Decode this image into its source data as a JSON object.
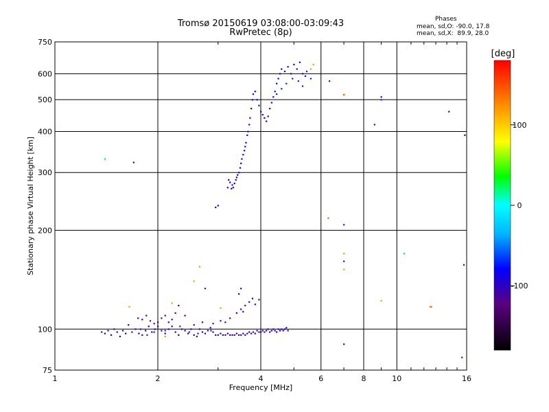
{
  "header": {
    "title": "Tromsø 20150619 03:08:00-03:09:43",
    "subtitle": "RwPretec (8p)",
    "phases_title": "Phases",
    "phases_o": "mean, sd,O: -90.0, 17.8",
    "phases_x": "mean, sd,X:  89.9, 28.0"
  },
  "chart_data": {
    "type": "scatter",
    "title": "Tromsø 20150619 03:08:00-03:09:43",
    "subtitle": "RwPretec (8p)",
    "xlabel": "Frequency [MHz]",
    "ylabel": "Stationary phase Virtual Height [km]",
    "xscale": "log",
    "yscale": "log",
    "xlim": [
      1,
      16
    ],
    "ylim": [
      75,
      750
    ],
    "x_ticks": [
      1,
      2,
      4,
      6,
      8,
      10,
      16
    ],
    "x_tick_labels": [
      "1",
      "2",
      "4",
      "6",
      "8",
      "10",
      "16"
    ],
    "y_ticks": [
      75,
      100,
      200,
      300,
      400,
      500,
      600,
      750
    ],
    "y_tick_labels": [
      "75",
      "100",
      "200",
      "300",
      "400",
      "500",
      "600",
      "750"
    ],
    "grid": true,
    "colorbar": {
      "label": "[deg]",
      "range": [
        -180,
        180
      ],
      "ticks": [
        100,
        0,
        -100
      ],
      "tick_labels": [
        "100",
        "0",
        "-100"
      ]
    },
    "series": [
      {
        "name": "",
        "phase": -100,
        "points": [
          [
            1.37,
            98
          ],
          [
            1.4,
            97
          ],
          [
            1.43,
            99
          ],
          [
            1.46,
            96
          ],
          [
            1.49,
            100
          ],
          [
            1.52,
            98
          ],
          [
            1.55,
            95
          ],
          [
            1.58,
            99
          ],
          [
            1.61,
            97
          ],
          [
            1.64,
            103
          ],
          [
            1.68,
            98
          ],
          [
            1.72,
            100
          ],
          [
            1.76,
            97
          ],
          [
            1.8,
            96
          ],
          [
            1.84,
            99
          ],
          [
            1.88,
            102
          ],
          [
            1.92,
            98
          ],
          [
            1.96,
            100
          ],
          [
            2.0,
            105
          ],
          [
            2.05,
            99
          ],
          [
            2.1,
            97
          ],
          [
            2.15,
            100
          ],
          [
            2.2,
            102
          ],
          [
            2.25,
            98
          ],
          [
            2.3,
            96
          ],
          [
            2.35,
            100
          ],
          [
            2.4,
            99
          ],
          [
            2.45,
            97
          ],
          [
            2.5,
            100
          ],
          [
            2.55,
            96
          ],
          [
            2.6,
            95
          ],
          [
            2.65,
            100
          ],
          [
            2.7,
            98
          ],
          [
            2.75,
            97
          ],
          [
            2.8,
            99
          ],
          [
            2.85,
            101
          ],
          [
            2.9,
            98
          ],
          [
            2.95,
            96
          ],
          [
            3.0,
            96
          ],
          [
            3.05,
            97
          ],
          [
            3.1,
            96
          ],
          [
            3.15,
            96
          ],
          [
            3.2,
            97
          ],
          [
            3.25,
            96
          ],
          [
            3.3,
            96
          ],
          [
            3.35,
            96
          ],
          [
            3.4,
            97
          ],
          [
            3.45,
            96
          ],
          [
            3.5,
            96
          ],
          [
            3.55,
            97
          ],
          [
            3.6,
            96
          ],
          [
            3.65,
            97
          ],
          [
            3.7,
            98
          ],
          [
            3.75,
            97
          ],
          [
            3.8,
            98
          ],
          [
            3.85,
            97
          ],
          [
            3.9,
            99
          ],
          [
            3.95,
            98
          ],
          [
            4.0,
            98
          ],
          [
            4.05,
            99
          ],
          [
            4.1,
            98
          ],
          [
            4.15,
            99
          ],
          [
            4.2,
            100
          ],
          [
            4.25,
            98
          ],
          [
            4.3,
            99
          ],
          [
            4.35,
            100
          ],
          [
            4.4,
            99
          ],
          [
            4.45,
            98
          ],
          [
            4.5,
            100
          ],
          [
            4.55,
            99
          ],
          [
            4.6,
            100
          ],
          [
            4.65,
            99
          ],
          [
            4.7,
            100
          ],
          [
            4.75,
            101
          ],
          [
            4.8,
            99
          ]
        ]
      },
      {
        "name": "",
        "phase": -110,
        "points": [
          [
            1.75,
            108
          ],
          [
            1.8,
            107
          ],
          [
            1.85,
            110
          ],
          [
            1.9,
            106
          ],
          [
            1.95,
            104
          ],
          [
            2.0,
            102
          ],
          [
            2.05,
            108
          ],
          [
            2.1,
            110
          ],
          [
            2.15,
            105
          ],
          [
            2.2,
            107
          ],
          [
            2.25,
            112
          ],
          [
            2.3,
            118
          ],
          [
            2.4,
            110
          ],
          [
            2.55,
            103
          ],
          [
            2.7,
            105
          ],
          [
            2.9,
            104
          ],
          [
            3.05,
            106
          ],
          [
            3.15,
            105
          ],
          [
            3.25,
            108
          ],
          [
            3.4,
            112
          ],
          [
            3.5,
            115
          ],
          [
            3.55,
            113
          ],
          [
            3.6,
            118
          ],
          [
            3.7,
            121
          ],
          [
            3.78,
            124
          ],
          [
            3.85,
            119
          ],
          [
            3.95,
            123
          ],
          [
            3.5,
            133
          ],
          [
            3.45,
            128
          ]
        ]
      },
      {
        "name": "",
        "phase": -90,
        "points": [
          [
            2.95,
            235
          ],
          [
            3.0,
            238
          ],
          [
            3.2,
            270
          ],
          [
            3.22,
            285
          ],
          [
            3.25,
            280
          ],
          [
            3.28,
            268
          ],
          [
            3.3,
            275
          ],
          [
            3.32,
            270
          ],
          [
            3.35,
            278
          ],
          [
            3.38,
            285
          ],
          [
            3.4,
            290
          ],
          [
            3.42,
            295
          ],
          [
            3.45,
            300
          ],
          [
            3.48,
            310
          ],
          [
            3.5,
            320
          ],
          [
            3.52,
            330
          ],
          [
            3.55,
            340
          ],
          [
            3.58,
            350
          ],
          [
            3.6,
            360
          ],
          [
            3.62,
            370
          ],
          [
            3.65,
            390
          ],
          [
            3.67,
            400
          ],
          [
            3.7,
            420
          ],
          [
            3.72,
            440
          ],
          [
            3.75,
            470
          ],
          [
            3.78,
            500
          ],
          [
            3.8,
            520
          ],
          [
            3.85,
            530
          ],
          [
            3.9,
            500
          ],
          [
            3.95,
            480
          ],
          [
            4.0,
            460
          ],
          [
            4.05,
            450
          ],
          [
            4.1,
            440
          ],
          [
            4.15,
            430
          ],
          [
            4.2,
            445
          ],
          [
            4.25,
            470
          ],
          [
            4.3,
            490
          ],
          [
            4.35,
            510
          ],
          [
            4.4,
            530
          ],
          [
            4.45,
            560
          ],
          [
            4.5,
            580
          ],
          [
            4.55,
            600
          ],
          [
            4.6,
            620
          ],
          [
            4.7,
            610
          ],
          [
            4.8,
            630
          ],
          [
            4.9,
            600
          ],
          [
            5.0,
            640
          ],
          [
            5.1,
            620
          ],
          [
            5.2,
            650
          ],
          [
            5.3,
            600
          ],
          [
            5.4,
            590
          ]
        ]
      },
      {
        "name": "",
        "phase": -70,
        "points": [
          [
            1.78,
            100
          ],
          [
            1.86,
            96
          ],
          [
            1.95,
            98
          ],
          [
            2.1,
            99
          ],
          [
            2.32,
            102
          ],
          [
            2.47,
            98
          ],
          [
            2.62,
            97
          ],
          [
            2.86,
            99
          ],
          [
            4.45,
            520
          ],
          [
            4.6,
            540
          ],
          [
            4.75,
            560
          ],
          [
            4.95,
            580
          ],
          [
            5.15,
            570
          ],
          [
            5.3,
            550
          ],
          [
            5.45,
            610
          ],
          [
            5.6,
            580
          ],
          [
            9.0,
            500
          ],
          [
            15.5,
            82
          ],
          [
            6.35,
            570
          ],
          [
            7.0,
            208
          ]
        ]
      },
      {
        "name": "",
        "phase": 120,
        "points": [
          [
            1.65,
            117
          ],
          [
            2.1,
            95
          ],
          [
            2.55,
            140
          ],
          [
            2.65,
            155
          ],
          [
            2.2,
            120
          ],
          [
            3.05,
            116
          ],
          [
            7.0,
            170
          ],
          [
            7.0,
            152
          ],
          [
            7.0,
            518
          ],
          [
            9.0,
            122
          ],
          [
            12.5,
            117
          ],
          [
            5.7,
            640
          ],
          [
            5.6,
            620
          ]
        ]
      },
      {
        "name": "",
        "phase": 145,
        "points": [
          [
            6.3,
            218
          ],
          [
            12.6,
            117
          ],
          [
            7.0,
            518
          ]
        ]
      },
      {
        "name": "",
        "phase": 30,
        "points": [
          [
            1.4,
            330
          ],
          [
            10.5,
            170
          ]
        ]
      },
      {
        "name": "",
        "phase": -130,
        "points": [
          [
            1.7,
            322
          ],
          [
            7.0,
            161
          ],
          [
            7.0,
            90
          ],
          [
            8.6,
            420
          ],
          [
            9.0,
            510
          ],
          [
            14.2,
            460
          ],
          [
            15.8,
            390
          ],
          [
            15.7,
            157
          ],
          [
            2.75,
            133
          ]
        ]
      }
    ]
  }
}
